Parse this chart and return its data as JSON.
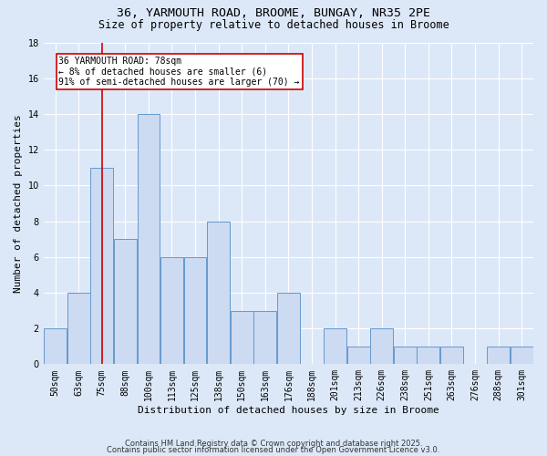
{
  "title1": "36, YARMOUTH ROAD, BROOME, BUNGAY, NR35 2PE",
  "title2": "Size of property relative to detached houses in Broome",
  "xlabel": "Distribution of detached houses by size in Broome",
  "ylabel": "Number of detached properties",
  "categories": [
    "50sqm",
    "63sqm",
    "75sqm",
    "88sqm",
    "100sqm",
    "113sqm",
    "125sqm",
    "138sqm",
    "150sqm",
    "163sqm",
    "176sqm",
    "188sqm",
    "201sqm",
    "213sqm",
    "226sqm",
    "238sqm",
    "251sqm",
    "263sqm",
    "276sqm",
    "288sqm",
    "301sqm"
  ],
  "values": [
    2,
    4,
    11,
    7,
    14,
    6,
    6,
    8,
    3,
    3,
    4,
    0,
    2,
    1,
    2,
    1,
    1,
    1,
    0,
    1,
    1
  ],
  "bar_color": "#ccdaf2",
  "bar_edge_color": "#6699cc",
  "red_line_x": 2.0,
  "annotation_text": "36 YARMOUTH ROAD: 78sqm\n← 8% of detached houses are smaller (6)\n91% of semi-detached houses are larger (70) →",
  "annotation_box_color": "#ffffff",
  "annotation_box_edge": "#cc0000",
  "ylim": [
    0,
    18
  ],
  "yticks": [
    0,
    2,
    4,
    6,
    8,
    10,
    12,
    14,
    16,
    18
  ],
  "footer1": "Contains HM Land Registry data © Crown copyright and database right 2025.",
  "footer2": "Contains public sector information licensed under the Open Government Licence v3.0.",
  "bg_color": "#dce8f8",
  "plot_bg_color": "#dce8f8",
  "grid_color": "#ffffff",
  "red_line_color": "#cc0000",
  "title_fontsize": 9.5,
  "subtitle_fontsize": 8.5,
  "ann_fontsize": 7.0,
  "tick_fontsize": 7.0,
  "ylabel_fontsize": 8,
  "xlabel_fontsize": 8,
  "footer_fontsize": 6.0
}
